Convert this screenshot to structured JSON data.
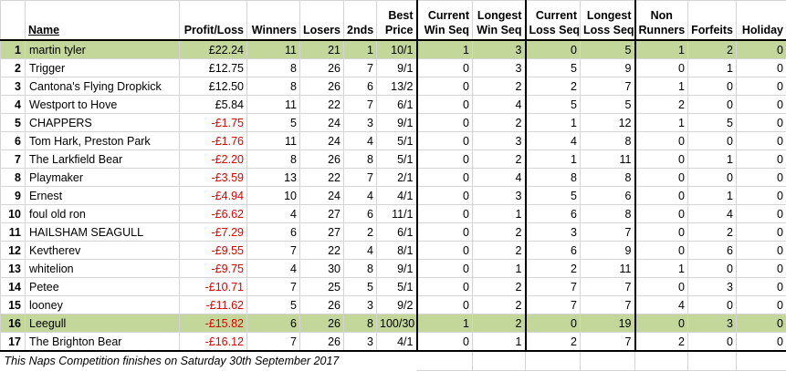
{
  "headers": {
    "name": "Name",
    "profit_loss": "Profit/Loss",
    "winners": "Winners",
    "losers": "Losers",
    "seconds": "2nds",
    "best_price": [
      "Best",
      "Price"
    ],
    "current_win_seq": [
      "Current",
      "Win Seq"
    ],
    "longest_win_seq": [
      "Longest",
      "Win Seq"
    ],
    "current_loss_seq": [
      "Current",
      "Loss Seq"
    ],
    "longest_loss_seq": [
      "Longest",
      "Loss Seq"
    ],
    "non_runners": [
      "Non",
      "Runners"
    ],
    "forfeits": "Forfeits",
    "holiday": "Holiday"
  },
  "highlight_color": "#c4d79b",
  "negative_color": "#e00000",
  "rows": [
    {
      "rank": "1",
      "name": "martin tyler",
      "pl": "£22.24",
      "neg": false,
      "winners": "11",
      "losers": "21",
      "seconds": "1",
      "best": "10/1",
      "cws": "1",
      "lws": "3",
      "cls": "0",
      "lls": "5",
      "nr": "1",
      "ff": "2",
      "hol": "0",
      "hl": true
    },
    {
      "rank": "2",
      "name": "Trigger",
      "pl": "£12.75",
      "neg": false,
      "winners": "8",
      "losers": "26",
      "seconds": "7",
      "best": "9/1",
      "cws": "0",
      "lws": "3",
      "cls": "5",
      "lls": "9",
      "nr": "0",
      "ff": "1",
      "hol": "0",
      "hl": false
    },
    {
      "rank": "3",
      "name": "Cantona's Flying Dropkick",
      "pl": "£12.50",
      "neg": false,
      "winners": "8",
      "losers": "26",
      "seconds": "6",
      "best": "13/2",
      "cws": "0",
      "lws": "2",
      "cls": "2",
      "lls": "7",
      "nr": "1",
      "ff": "0",
      "hol": "0",
      "hl": false
    },
    {
      "rank": "4",
      "name": "Westport to Hove",
      "pl": "£5.84",
      "neg": false,
      "winners": "11",
      "losers": "22",
      "seconds": "7",
      "best": "6/1",
      "cws": "0",
      "lws": "4",
      "cls": "5",
      "lls": "5",
      "nr": "2",
      "ff": "0",
      "hol": "0",
      "hl": false
    },
    {
      "rank": "5",
      "name": "CHAPPERS",
      "pl": "-£1.75",
      "neg": true,
      "winners": "5",
      "losers": "24",
      "seconds": "3",
      "best": "9/1",
      "cws": "0",
      "lws": "2",
      "cls": "1",
      "lls": "12",
      "nr": "1",
      "ff": "5",
      "hol": "0",
      "hl": false
    },
    {
      "rank": "6",
      "name": "Tom Hark, Preston Park",
      "pl": "-£1.76",
      "neg": true,
      "winners": "11",
      "losers": "24",
      "seconds": "4",
      "best": "5/1",
      "cws": "0",
      "lws": "3",
      "cls": "4",
      "lls": "8",
      "nr": "0",
      "ff": "0",
      "hol": "0",
      "hl": false
    },
    {
      "rank": "7",
      "name": "The Larkfield Bear",
      "pl": "-£2.20",
      "neg": true,
      "winners": "8",
      "losers": "26",
      "seconds": "8",
      "best": "5/1",
      "cws": "0",
      "lws": "2",
      "cls": "1",
      "lls": "11",
      "nr": "0",
      "ff": "1",
      "hol": "0",
      "hl": false
    },
    {
      "rank": "8",
      "name": "Playmaker",
      "pl": "-£3.59",
      "neg": true,
      "winners": "13",
      "losers": "22",
      "seconds": "7",
      "best": "2/1",
      "cws": "0",
      "lws": "4",
      "cls": "8",
      "lls": "8",
      "nr": "0",
      "ff": "0",
      "hol": "0",
      "hl": false
    },
    {
      "rank": "9",
      "name": "Ernest",
      "pl": "-£4.94",
      "neg": true,
      "winners": "10",
      "losers": "24",
      "seconds": "4",
      "best": "4/1",
      "cws": "0",
      "lws": "3",
      "cls": "5",
      "lls": "6",
      "nr": "0",
      "ff": "1",
      "hol": "0",
      "hl": false
    },
    {
      "rank": "10",
      "name": "foul old ron",
      "pl": "-£6.62",
      "neg": true,
      "winners": "4",
      "losers": "27",
      "seconds": "6",
      "best": "11/1",
      "cws": "0",
      "lws": "1",
      "cls": "6",
      "lls": "8",
      "nr": "0",
      "ff": "4",
      "hol": "0",
      "hl": false
    },
    {
      "rank": "11",
      "name": "HAILSHAM SEAGULL",
      "pl": "-£7.29",
      "neg": true,
      "winners": "6",
      "losers": "27",
      "seconds": "2",
      "best": "6/1",
      "cws": "0",
      "lws": "2",
      "cls": "3",
      "lls": "7",
      "nr": "0",
      "ff": "2",
      "hol": "0",
      "hl": false
    },
    {
      "rank": "12",
      "name": "Kevtherev",
      "pl": "-£9.55",
      "neg": true,
      "winners": "7",
      "losers": "22",
      "seconds": "4",
      "best": "8/1",
      "cws": "0",
      "lws": "2",
      "cls": "6",
      "lls": "9",
      "nr": "0",
      "ff": "6",
      "hol": "0",
      "hl": false
    },
    {
      "rank": "13",
      "name": "whitelion",
      "pl": "-£9.75",
      "neg": true,
      "winners": "4",
      "losers": "30",
      "seconds": "8",
      "best": "9/1",
      "cws": "0",
      "lws": "1",
      "cls": "2",
      "lls": "11",
      "nr": "1",
      "ff": "0",
      "hol": "0",
      "hl": false
    },
    {
      "rank": "14",
      "name": "Petee",
      "pl": "-£10.71",
      "neg": true,
      "winners": "7",
      "losers": "25",
      "seconds": "5",
      "best": "5/1",
      "cws": "0",
      "lws": "2",
      "cls": "7",
      "lls": "7",
      "nr": "0",
      "ff": "3",
      "hol": "0",
      "hl": false
    },
    {
      "rank": "15",
      "name": "looney",
      "pl": "-£11.62",
      "neg": true,
      "winners": "5",
      "losers": "26",
      "seconds": "3",
      "best": "9/2",
      "cws": "0",
      "lws": "2",
      "cls": "7",
      "lls": "7",
      "nr": "4",
      "ff": "0",
      "hol": "0",
      "hl": false
    },
    {
      "rank": "16",
      "name": "Leegull",
      "pl": "-£15.82",
      "neg": true,
      "winners": "6",
      "losers": "26",
      "seconds": "8",
      "best": "100/30",
      "cws": "1",
      "lws": "2",
      "cls": "0",
      "lls": "19",
      "nr": "0",
      "ff": "3",
      "hol": "0",
      "hl": true
    },
    {
      "rank": "17",
      "name": "The Brighton Bear",
      "pl": "-£16.12",
      "neg": true,
      "winners": "7",
      "losers": "26",
      "seconds": "3",
      "best": "4/1",
      "cws": "0",
      "lws": "1",
      "cls": "2",
      "lls": "7",
      "nr": "2",
      "ff": "0",
      "hol": "0",
      "hl": false
    }
  ],
  "footer_note": "This Naps Competition finishes on Saturday 30th September 2017"
}
